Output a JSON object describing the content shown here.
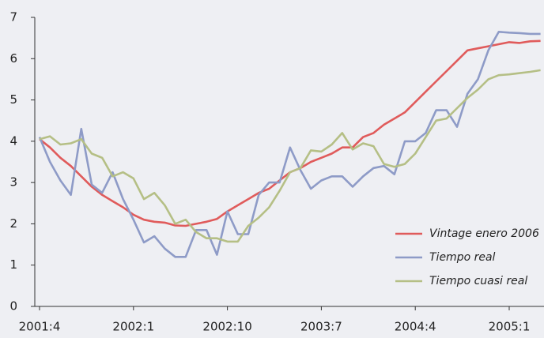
{
  "chart_data": {
    "type": "line",
    "categories": [
      "2001:4",
      null,
      null,
      null,
      null,
      null,
      null,
      null,
      null,
      "2002:1",
      null,
      null,
      null,
      null,
      null,
      null,
      null,
      null,
      "2002:10",
      null,
      null,
      null,
      null,
      null,
      null,
      null,
      null,
      "2003:7",
      null,
      null,
      null,
      null,
      null,
      null,
      null,
      null,
      "2004:4",
      null,
      null,
      null,
      null,
      null,
      null,
      null,
      null,
      "2005:1",
      null,
      null,
      null
    ],
    "series": [
      {
        "name": "Vintage enero 2006",
        "color": "#e05b5b",
        "values": [
          4.05,
          3.85,
          3.6,
          3.4,
          3.15,
          2.9,
          2.7,
          2.55,
          2.4,
          2.22,
          2.1,
          2.05,
          2.03,
          1.96,
          1.95,
          2.0,
          2.05,
          2.12,
          2.3,
          2.45,
          2.6,
          2.75,
          2.85,
          3.05,
          3.25,
          3.35,
          3.5,
          3.6,
          3.7,
          3.85,
          3.85,
          4.1,
          4.2,
          4.4,
          4.55,
          4.7,
          4.95,
          5.2,
          5.45,
          5.7,
          5.95,
          6.2,
          6.25,
          6.3,
          6.35,
          6.4,
          6.38,
          6.42,
          6.43
        ]
      },
      {
        "name": "Tiempo real",
        "color": "#8e9bc7",
        "values": [
          4.1,
          3.5,
          3.05,
          2.7,
          4.3,
          2.95,
          2.75,
          3.25,
          2.6,
          2.1,
          1.55,
          1.7,
          1.4,
          1.2,
          1.2,
          1.85,
          1.85,
          1.25,
          2.3,
          1.75,
          1.75,
          2.7,
          3.0,
          3.0,
          3.85,
          3.3,
          2.85,
          3.05,
          3.15,
          3.15,
          2.9,
          3.15,
          3.35,
          3.4,
          3.2,
          4.0,
          4.0,
          4.2,
          4.75,
          4.75,
          4.35,
          5.15,
          5.5,
          6.2,
          6.65,
          6.63,
          6.62,
          6.6,
          6.6
        ]
      },
      {
        "name": "Tiempo cuasi real",
        "color": "#b5bf85",
        "values": [
          4.05,
          4.12,
          3.92,
          3.95,
          4.05,
          3.7,
          3.6,
          3.15,
          3.25,
          3.1,
          2.6,
          2.75,
          2.45,
          2.0,
          2.1,
          1.8,
          1.65,
          1.65,
          1.57,
          1.57,
          1.95,
          2.15,
          2.4,
          2.8,
          3.25,
          3.35,
          3.78,
          3.75,
          3.92,
          4.2,
          3.8,
          3.95,
          3.88,
          3.45,
          3.38,
          3.45,
          3.7,
          4.1,
          4.5,
          4.55,
          4.8,
          5.05,
          5.25,
          5.5,
          5.6,
          5.62,
          5.65,
          5.68,
          5.72
        ]
      }
    ],
    "ylim": [
      0,
      7
    ],
    "yticks": [
      0,
      1,
      2,
      3,
      4,
      5,
      6,
      7
    ]
  }
}
